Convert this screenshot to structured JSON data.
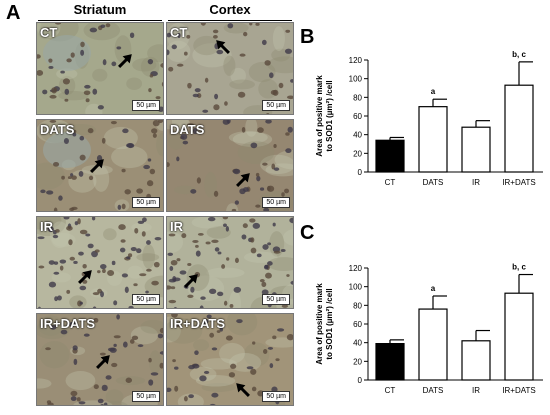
{
  "figure": {
    "panel_a_letter": "A",
    "columns": [
      "Striatum",
      "Cortex"
    ],
    "rows": [
      "CT",
      "DATS",
      "IR",
      "IR+DATS"
    ],
    "scale_label": "50 µm"
  },
  "chart_data": [
    {
      "panel": "B",
      "type": "bar",
      "categories": [
        "CT",
        "DATS",
        "IR",
        "IR+DATS"
      ],
      "values": [
        34,
        70,
        48,
        93
      ],
      "errors": [
        3,
        8,
        7,
        25
      ],
      "fills": [
        "#000000",
        "#ffffff",
        "#ffffff",
        "#ffffff"
      ],
      "annotations": [
        "",
        "a",
        "",
        "b, c"
      ],
      "ylabel_line1": "Area of positive mark",
      "ylabel_line2": "to SOD1 (µm²) /cell",
      "ylim": [
        0,
        120
      ],
      "yticks": [
        0,
        20,
        40,
        60,
        80,
        100,
        120
      ]
    },
    {
      "panel": "C",
      "type": "bar",
      "categories": [
        "CT",
        "DATS",
        "IR",
        "IR+DATS"
      ],
      "values": [
        39,
        76,
        42,
        93
      ],
      "errors": [
        4,
        14,
        11,
        20
      ],
      "fills": [
        "#000000",
        "#ffffff",
        "#ffffff",
        "#ffffff"
      ],
      "annotations": [
        "",
        "a",
        "",
        "b, c"
      ],
      "ylabel_line1": "Area of positive mark",
      "ylabel_line2": "to SOD1 (µm²) /cell",
      "ylim": [
        0,
        120
      ],
      "yticks": [
        0,
        20,
        40,
        60,
        80,
        100,
        120
      ]
    }
  ]
}
